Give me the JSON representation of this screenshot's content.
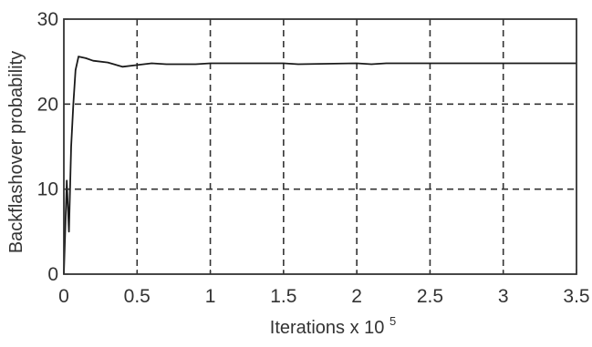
{
  "chart_data": {
    "type": "line",
    "xlabel": "Iterations x 10",
    "xlabel_exponent": "5",
    "ylabel": "Backflashover probability",
    "xlim": [
      0,
      3.5
    ],
    "ylim": [
      0,
      30
    ],
    "grid": true,
    "grid_style": "dashed",
    "x_ticks": [
      "0",
      "0.5",
      "1",
      "1.5",
      "2",
      "2.5",
      "3",
      "3.5"
    ],
    "y_ticks": [
      "0",
      "10",
      "20",
      "30"
    ],
    "series": [
      {
        "color": "#1a1a1a",
        "x": [
          0,
          0.02,
          0.035,
          0.05,
          0.065,
          0.08,
          0.1,
          0.15,
          0.2,
          0.3,
          0.4,
          0.5,
          0.6,
          0.7,
          0.8,
          0.9,
          1.0,
          1.2,
          1.5,
          1.6,
          2.0,
          2.1,
          2.2,
          2.5,
          3.0,
          3.5
        ],
        "y": [
          0,
          11,
          5,
          15,
          20,
          24,
          25.6,
          25.4,
          25.1,
          24.9,
          24.4,
          24.6,
          24.8,
          24.7,
          24.7,
          24.7,
          24.8,
          24.8,
          24.8,
          24.7,
          24.8,
          24.7,
          24.8,
          24.8,
          24.8,
          24.8
        ]
      }
    ]
  }
}
